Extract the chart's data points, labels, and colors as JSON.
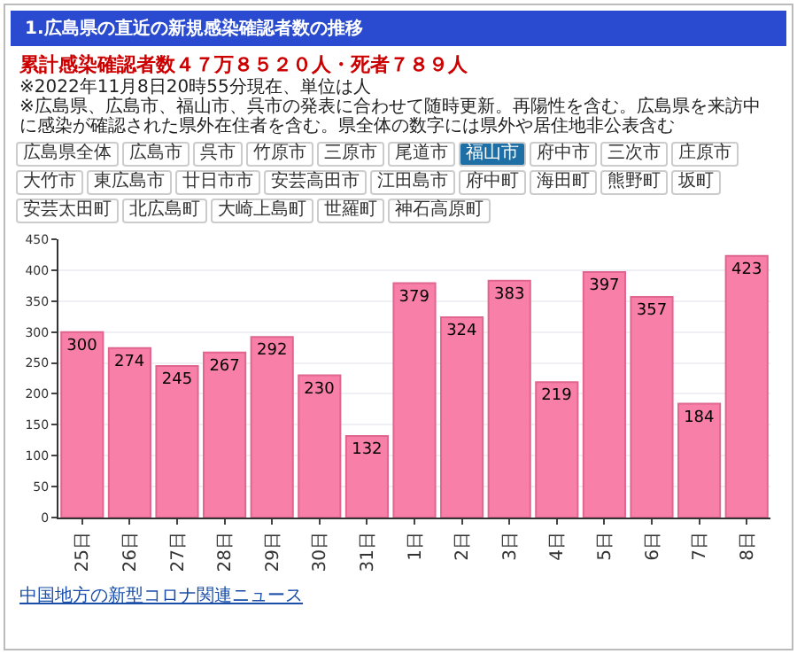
{
  "chart_data": {
    "type": "bar",
    "title": "1.広島県の直近の新規感染確認者数の推移",
    "subtitle": "累計感染確認者数４７万８５２０人・死者７８９人",
    "annotations": [
      "※2022年11月8日20時55分現在、単位は人",
      "※広島県、広島市、福山市、呉市の発表に合わせて随時更新。再陽性を含む。広島県を来訪中に感染が確認された県外在住者を含む。県全体の数字には県外や居住地非公表含む",
      "広島県全体",
      "広島市",
      "呉市",
      "竹原市",
      "三原市",
      "尾道市",
      "福山市",
      "府中市",
      "三次市",
      "庄原市",
      "大竹市",
      "東広島市",
      "廿日市市",
      "安芸高田市",
      "江田島市",
      "府中町",
      "海田町",
      "熊野町",
      "坂町",
      "安芸太田町",
      "北広島町",
      "大崎上島町",
      "世羅町",
      "神石高原町",
      "中国地方の新型コロナ関連ニュース"
    ],
    "categories": [
      "25日",
      "26日",
      "27日",
      "28日",
      "29日",
      "30日",
      "31日",
      "1日",
      "2日",
      "3日",
      "4日",
      "5日",
      "6日",
      "7日",
      "8日"
    ],
    "values": [
      300,
      274,
      245,
      267,
      292,
      230,
      132,
      379,
      324,
      383,
      219,
      397,
      357,
      184,
      423
    ],
    "color": "#f77fa8",
    "ylim": [
      0,
      450
    ],
    "yticks": [
      0,
      50,
      100,
      150,
      200,
      250,
      300,
      350,
      400,
      450
    ],
    "grid": "y",
    "data_labels": true
  }
}
